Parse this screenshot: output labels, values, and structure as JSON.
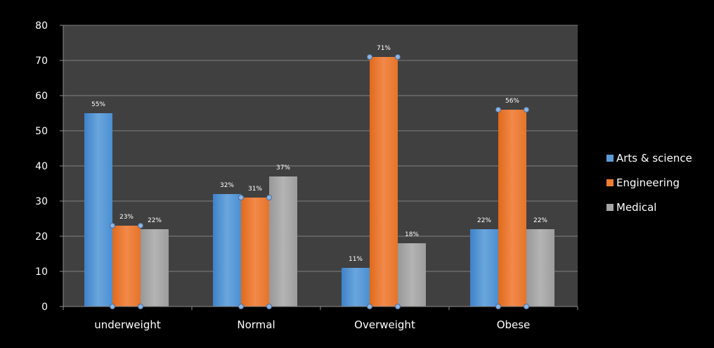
{
  "chart_data": {
    "type": "bar",
    "categories": [
      "underweight",
      "Normal",
      "Overweight",
      "Obese"
    ],
    "series": [
      {
        "name": "Arts & science",
        "values": [
          55,
          32,
          11,
          22
        ],
        "labels": [
          "55%",
          "32%",
          "11%",
          "22%"
        ],
        "color": "#5b9bd5"
      },
      {
        "name": "Engineering",
        "values": [
          23,
          31,
          71,
          56
        ],
        "labels": [
          "23%",
          "31%",
          "71%",
          "56%"
        ],
        "color": "#ed7d31"
      },
      {
        "name": "Medical",
        "values": [
          22,
          37,
          18,
          22
        ],
        "labels": [
          "22%",
          "37%",
          "18%",
          "22%"
        ],
        "color": "#a5a5a5"
      }
    ],
    "ylim": [
      0,
      80
    ],
    "yticks": [
      0,
      10,
      20,
      30,
      40,
      50,
      60,
      70,
      80
    ],
    "grid": true,
    "legend": "right",
    "colors": {
      "background": "#000000",
      "plot_area": "#404040",
      "grid": "#7f7f7f",
      "text": "#ffffff"
    }
  }
}
